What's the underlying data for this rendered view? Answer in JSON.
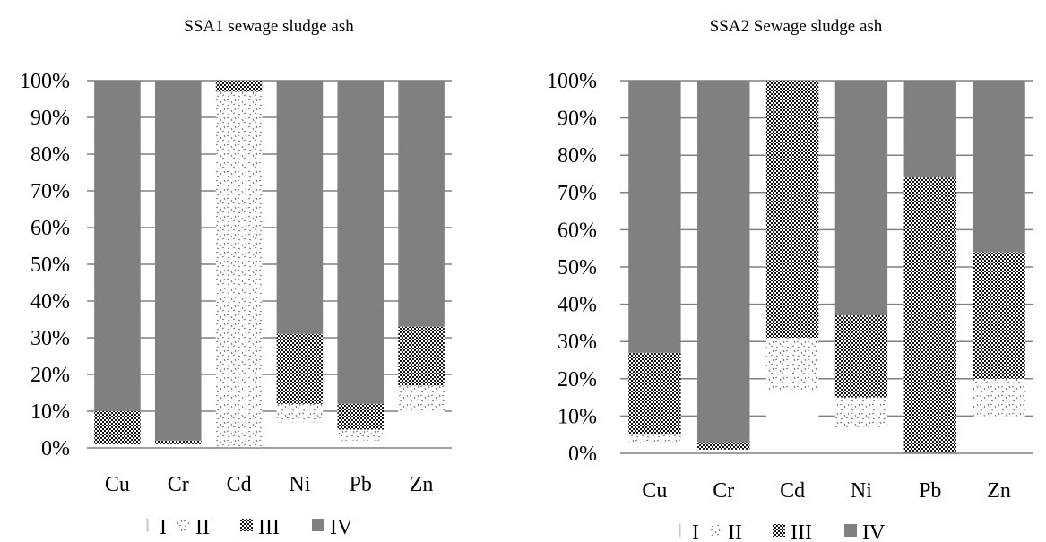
{
  "chart_data": [
    {
      "type": "bar",
      "stacked": "percent",
      "title": "SSA1 sewage sludge ash",
      "categories": [
        "Cu",
        "Cr",
        "Cd",
        "Ni",
        "Pb",
        "Zn"
      ],
      "series": [
        {
          "name": "I",
          "values": [
            1,
            1,
            0,
            7,
            2,
            10
          ]
        },
        {
          "name": "II",
          "values": [
            0,
            0,
            97,
            5,
            3,
            7
          ]
        },
        {
          "name": "III",
          "values": [
            9,
            1,
            3,
            19,
            7,
            16
          ]
        },
        {
          "name": "IV",
          "values": [
            90,
            98,
            0,
            69,
            88,
            67
          ]
        }
      ],
      "ylim": [
        0,
        100
      ],
      "yticks": [
        "0%",
        "10%",
        "20%",
        "30%",
        "40%",
        "50%",
        "60%",
        "70%",
        "80%",
        "90%",
        "100%"
      ],
      "grid": true,
      "legend_position": "bottom"
    },
    {
      "type": "bar",
      "stacked": "percent",
      "title": "SSA2 Sewage sludge ash",
      "categories": [
        "Cu",
        "Cr",
        "Cd",
        "Ni",
        "Pb",
        "Zn"
      ],
      "series": [
        {
          "name": "I",
          "values": [
            3,
            1,
            17,
            7,
            0,
            10
          ]
        },
        {
          "name": "II",
          "values": [
            2,
            0,
            14,
            8,
            0,
            10
          ]
        },
        {
          "name": "III",
          "values": [
            22,
            2,
            69,
            22,
            74,
            34
          ]
        },
        {
          "name": "IV",
          "values": [
            73,
            97,
            0,
            63,
            26,
            46
          ]
        }
      ],
      "ylim": [
        0,
        100
      ],
      "yticks": [
        "0%",
        "10%",
        "20%",
        "30%",
        "40%",
        "50%",
        "60%",
        "70%",
        "80%",
        "90%",
        "100%"
      ],
      "grid": true,
      "legend_position": "bottom"
    }
  ],
  "colors": {
    "I": "#ffffff",
    "II": "#ffffff",
    "III": "#111111",
    "IV": "#808080",
    "grid": "#808080"
  },
  "patterns": {
    "I": "solid",
    "II": "confetti",
    "III": "checkerboard",
    "IV": "solid"
  }
}
